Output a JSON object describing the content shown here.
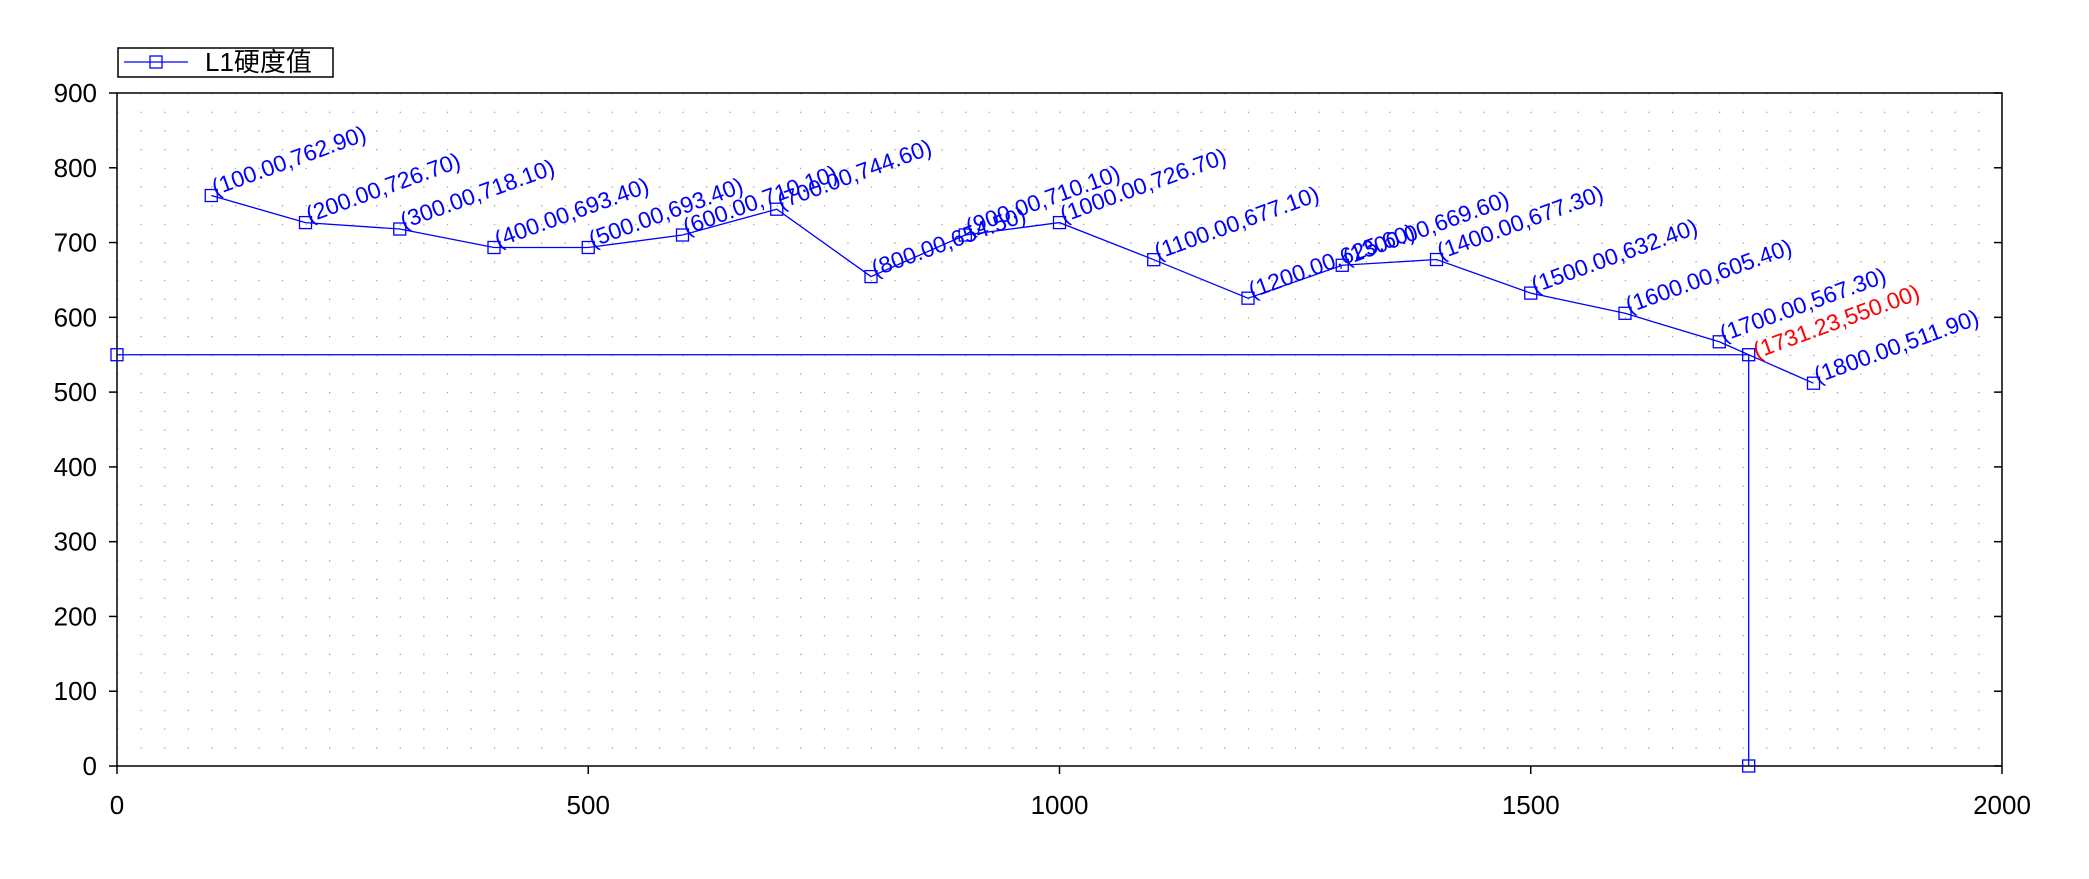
{
  "chart_data": {
    "type": "line",
    "x": [
      100,
      200,
      300,
      400,
      500,
      600,
      700,
      800,
      900,
      1000,
      1100,
      1200,
      1300,
      1400,
      1500,
      1600,
      1700,
      1800
    ],
    "series": [
      {
        "name": "L1硬度值",
        "color": "#0000ff",
        "values": [
          762.9,
          726.7,
          718.1,
          693.4,
          693.4,
          710.1,
          744.6,
          654.5,
          710.1,
          726.7,
          677.1,
          625.6,
          669.6,
          677.3,
          632.4,
          605.4,
          567.3,
          511.9
        ],
        "value_labels": [
          "(100.00,762.90)",
          "(200.00,726.70)",
          "(300.00,718.10)",
          "(400.00,693.40)",
          "(500.00,693.40)",
          "(600.00,710.10)",
          "(700.00,744.60)",
          "(800.00,654.50)",
          "(900.00,710.10)",
          "(1000.00,726.70)",
          "(1100.00,677.10)",
          "(1200.00,625.60)",
          "(1300.00,669.60)",
          "(1400.00,677.30)",
          "(1500.00,632.40)",
          "(1600.00,605.40)",
          "(1700.00,567.30)",
          "(1800.00,511.90)"
        ]
      }
    ],
    "cursor": {
      "x": 1731.23,
      "y": 550,
      "label": "(1731.23,550.00)",
      "color": "#ff0000"
    },
    "xlim": [
      0,
      2000
    ],
    "xticks": [
      0,
      500,
      1000,
      1500,
      2000
    ],
    "ylim": [
      0,
      900
    ],
    "yticks": [
      0,
      100,
      200,
      300,
      400,
      500,
      600,
      700,
      800,
      900
    ],
    "grid": true
  }
}
